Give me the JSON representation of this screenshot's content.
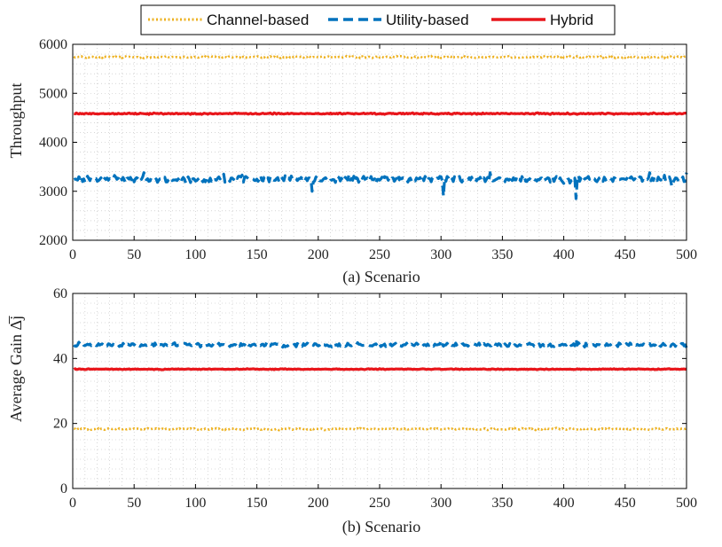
{
  "legend": {
    "items": [
      {
        "label": "Channel-based",
        "color": "#EDB120",
        "dash": "dotted"
      },
      {
        "label": "Utility-based",
        "color": "#0072BD",
        "dash": "dashed"
      },
      {
        "label": "Hybrid",
        "color": "#E8161B",
        "dash": "solid"
      }
    ]
  },
  "chart_data": [
    {
      "type": "line",
      "title": "",
      "xlabel": "(a) Scenario",
      "ylabel": "Throughput",
      "xlim": [
        0,
        500
      ],
      "ylim": [
        2000,
        6000
      ],
      "xticks": [
        0,
        50,
        100,
        150,
        200,
        250,
        300,
        350,
        400,
        450,
        500
      ],
      "yticks": [
        2000,
        3000,
        4000,
        5000,
        6000
      ],
      "grid": "minor-dotted",
      "x": {
        "start": 1,
        "end": 500,
        "step": 1
      },
      "series": [
        {
          "name": "Channel-based",
          "color": "#EDB120",
          "dash": "dotted",
          "mean": 5740,
          "noise": 20,
          "spikes": []
        },
        {
          "name": "Utility-based",
          "color": "#0072BD",
          "dash": "dashed",
          "mean": 3250,
          "noise": 60,
          "spikes": [
            [
              195,
              3000
            ],
            [
              302,
              2900
            ],
            [
              410,
              2850
            ],
            [
              58,
              3380
            ],
            [
              123,
              3350
            ],
            [
              265,
              3350
            ],
            [
              340,
              3380
            ],
            [
              470,
              3380
            ],
            [
              488,
              3100
            ],
            [
              500,
              3380
            ]
          ]
        },
        {
          "name": "Hybrid",
          "color": "#E8161B",
          "dash": "solid",
          "mean": 4585,
          "noise": 12,
          "spikes": []
        }
      ]
    },
    {
      "type": "line",
      "title": "",
      "xlabel": "(b) Scenario",
      "ylabel": "Average Gain Δ̅j",
      "xlim": [
        0,
        500
      ],
      "ylim": [
        0,
        60
      ],
      "xticks": [
        0,
        50,
        100,
        150,
        200,
        250,
        300,
        350,
        400,
        450,
        500
      ],
      "yticks": [
        0,
        20,
        40,
        60
      ],
      "grid": "minor-dotted",
      "x": {
        "start": 1,
        "end": 500,
        "step": 1
      },
      "series": [
        {
          "name": "Channel-based",
          "color": "#EDB120",
          "dash": "dotted",
          "mean": 18.3,
          "noise": 0.25,
          "spikes": []
        },
        {
          "name": "Utility-based",
          "color": "#0072BD",
          "dash": "dashed",
          "mean": 44.2,
          "noise": 0.5,
          "spikes": [
            [
              300,
              45.6
            ],
            [
              410,
              46.0
            ],
            [
              5,
              45.0
            ],
            [
              500,
              43.3
            ]
          ]
        },
        {
          "name": "Hybrid",
          "color": "#E8161B",
          "dash": "solid",
          "mean": 36.7,
          "noise": 0.12,
          "spikes": []
        }
      ]
    }
  ]
}
